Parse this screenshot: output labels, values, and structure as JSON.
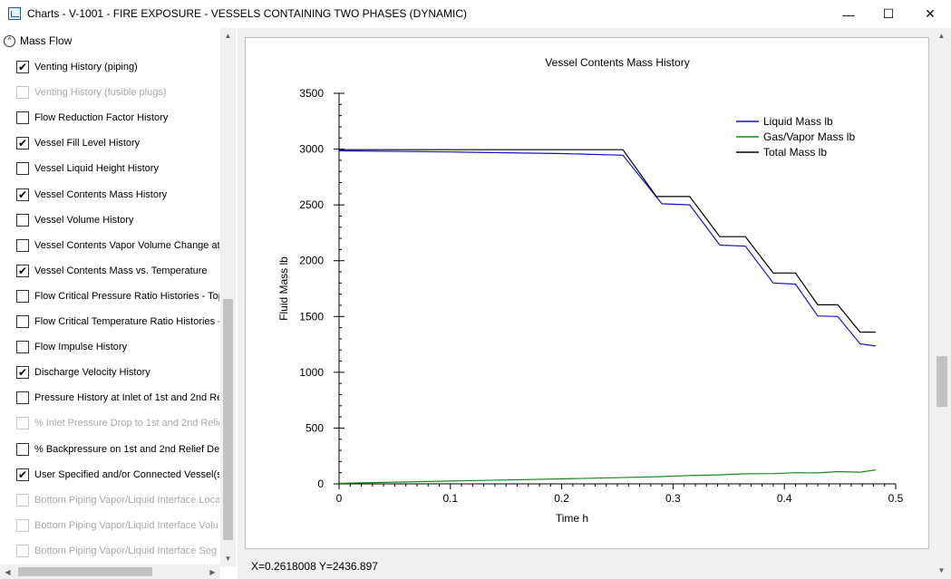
{
  "window": {
    "title": "Charts - V-1001 - FIRE EXPOSURE - VESSELS CONTAINING TWO PHASES (DYNAMIC)",
    "minimize_icon": "—",
    "maximize_icon": "☐",
    "close_icon": "✕"
  },
  "sidebar": {
    "section_label": "Mass Flow",
    "collapse_glyph": "^",
    "items": [
      {
        "label": "Venting History (piping)",
        "checked": true,
        "disabled": false
      },
      {
        "label": "Venting History (fusible plugs)",
        "checked": false,
        "disabled": true
      },
      {
        "label": "Flow Reduction Factor History",
        "checked": false,
        "disabled": false
      },
      {
        "label": "Vessel Fill Level History",
        "checked": true,
        "disabled": false
      },
      {
        "label": "Vessel Liquid Height History",
        "checked": false,
        "disabled": false
      },
      {
        "label": "Vessel Contents Mass History",
        "checked": true,
        "disabled": false
      },
      {
        "label": "Vessel Volume History",
        "checked": false,
        "disabled": false
      },
      {
        "label": "Vessel Contents Vapor Volume Change at",
        "checked": false,
        "disabled": false
      },
      {
        "label": "Vessel Contents Mass vs. Temperature",
        "checked": true,
        "disabled": false
      },
      {
        "label": "Flow Critical Pressure Ratio Histories - Top",
        "checked": false,
        "disabled": false
      },
      {
        "label": "Flow Critical Temperature Ratio Histories -",
        "checked": false,
        "disabled": false
      },
      {
        "label": "Flow Impulse History",
        "checked": false,
        "disabled": false
      },
      {
        "label": "Discharge Velocity History",
        "checked": true,
        "disabled": false
      },
      {
        "label": "Pressure History at Inlet of 1st and 2nd Re",
        "checked": false,
        "disabled": false
      },
      {
        "label": "% Inlet Pressure Drop to 1st and 2nd Relie",
        "checked": false,
        "disabled": true
      },
      {
        "label": "% Backpressure on 1st and 2nd Relief Dev",
        "checked": false,
        "disabled": false
      },
      {
        "label": "User Specified and/or Connected Vessel(s)",
        "checked": true,
        "disabled": false
      },
      {
        "label": "Bottom Piping Vapor/Liquid Interface Loca",
        "checked": false,
        "disabled": true
      },
      {
        "label": "Bottom Piping Vapor/Liquid Interface Volu",
        "checked": false,
        "disabled": true
      },
      {
        "label": "Bottom Piping Vapor/Liquid Interface Seg",
        "checked": false,
        "disabled": true
      }
    ],
    "check_glyph": "✔"
  },
  "status_bar": {
    "cursor_readout": "X=0.2618008 Y=2436.897"
  },
  "chart_data": {
    "type": "line",
    "title": "Vessel Contents Mass History",
    "xlabel": "Time h",
    "ylabel": "Fluid Mass lb",
    "xlim": [
      0,
      0.5
    ],
    "ylim": [
      0,
      3500
    ],
    "x_ticks": [
      "0",
      "0.1",
      "0.2",
      "0.3",
      "0.4",
      "0.5"
    ],
    "y_ticks": [
      "0",
      "500",
      "1000",
      "1500",
      "2000",
      "2500",
      "3000",
      "3500"
    ],
    "legend_position": "top-right",
    "grid": false,
    "series": [
      {
        "name": "Liquid Mass lb",
        "color": "#1414c8",
        "points": [
          [
            0,
            2985
          ],
          [
            0.1,
            2975
          ],
          [
            0.2,
            2960
          ],
          [
            0.255,
            2945
          ],
          [
            0.29,
            2510
          ],
          [
            0.315,
            2500
          ],
          [
            0.342,
            2140
          ],
          [
            0.365,
            2130
          ],
          [
            0.39,
            1800
          ],
          [
            0.41,
            1790
          ],
          [
            0.43,
            1505
          ],
          [
            0.448,
            1500
          ],
          [
            0.468,
            1255
          ],
          [
            0.482,
            1235
          ]
        ]
      },
      {
        "name": "Gas/Vapor Mass lb",
        "color": "#1a8a1a",
        "points": [
          [
            0,
            5
          ],
          [
            0.1,
            25
          ],
          [
            0.2,
            45
          ],
          [
            0.25,
            55
          ],
          [
            0.29,
            65
          ],
          [
            0.315,
            75
          ],
          [
            0.342,
            80
          ],
          [
            0.365,
            90
          ],
          [
            0.39,
            92
          ],
          [
            0.41,
            100
          ],
          [
            0.43,
            98
          ],
          [
            0.448,
            110
          ],
          [
            0.468,
            105
          ],
          [
            0.482,
            125
          ]
        ]
      },
      {
        "name": "Total Mass lb",
        "color": "#000000",
        "points": [
          [
            0,
            2995
          ],
          [
            0.1,
            2995
          ],
          [
            0.2,
            2995
          ],
          [
            0.255,
            2995
          ],
          [
            0.285,
            2575
          ],
          [
            0.315,
            2575
          ],
          [
            0.342,
            2215
          ],
          [
            0.365,
            2215
          ],
          [
            0.39,
            1890
          ],
          [
            0.41,
            1890
          ],
          [
            0.43,
            1605
          ],
          [
            0.448,
            1605
          ],
          [
            0.468,
            1360
          ],
          [
            0.482,
            1360
          ]
        ]
      }
    ]
  }
}
